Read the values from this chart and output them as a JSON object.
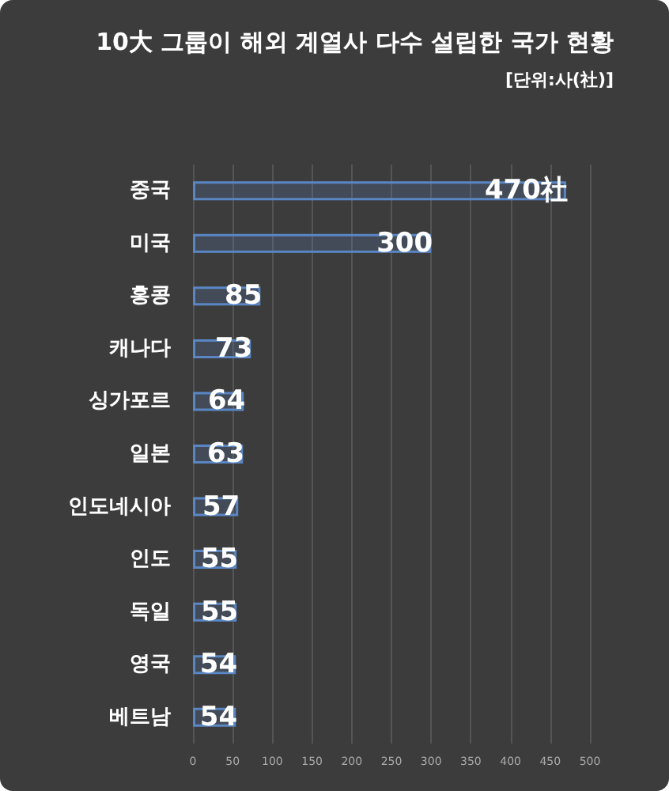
{
  "chart_data": {
    "type": "bar",
    "orientation": "horizontal",
    "title": "10大 그룹이 해외 계열사 다수 설립한 국가 현황",
    "subtitle": "[단위:사(社)]",
    "categories": [
      "중국",
      "미국",
      "홍콩",
      "캐나다",
      "싱가포르",
      "일본",
      "인도네시아",
      "인도",
      "독일",
      "영국",
      "베트남"
    ],
    "values": [
      470,
      300,
      85,
      73,
      64,
      63,
      57,
      55,
      55,
      54,
      54
    ],
    "value_labels": [
      "470社",
      "300",
      "85",
      "73",
      "64",
      "63",
      "57",
      "55",
      "55",
      "54",
      "54"
    ],
    "color": "#5a86c4",
    "xlim": [
      0,
      500
    ],
    "xticks": [
      0,
      50,
      100,
      150,
      200,
      250,
      300,
      350,
      400,
      450,
      500
    ],
    "grid": "x"
  }
}
